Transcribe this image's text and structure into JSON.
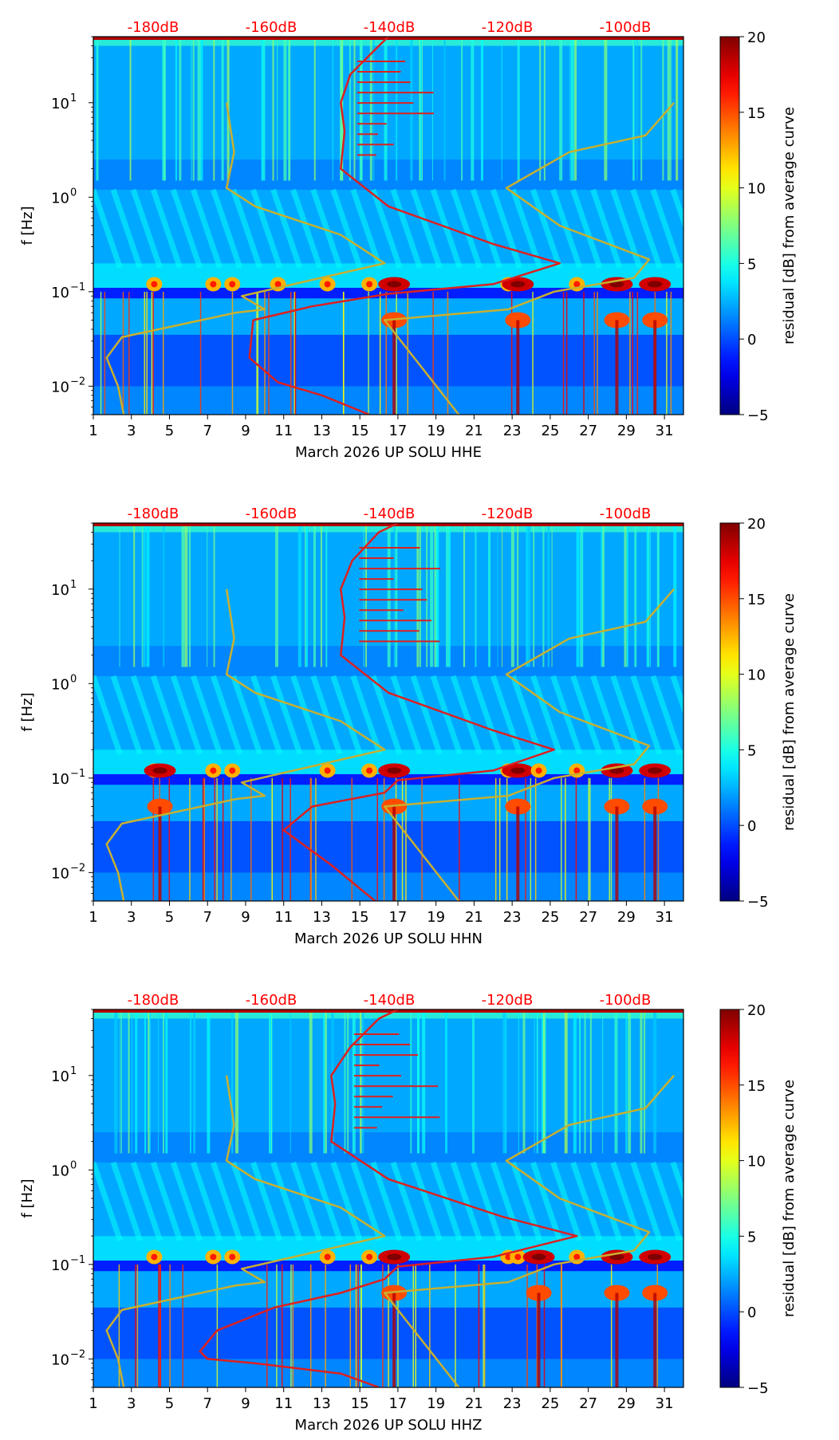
{
  "chart_data": [
    {
      "type": "heatmap",
      "title": "",
      "xlabel": "March 2026 UP SOLU  HHE",
      "ylabel": "f [Hz]",
      "x_ticks": [
        1,
        3,
        5,
        7,
        9,
        11,
        13,
        15,
        17,
        19,
        21,
        23,
        25,
        27,
        29,
        31
      ],
      "xlim": [
        1,
        32
      ],
      "y_scale": "log",
      "ylim": [
        0.005,
        50
      ],
      "y_ticks": [
        {
          "value": 0.01,
          "base": "10",
          "exp": "−2"
        },
        {
          "value": 0.1,
          "base": "10",
          "exp": "−1"
        },
        {
          "value": 1,
          "base": "10",
          "exp": "0"
        },
        {
          "value": 10,
          "base": "10",
          "exp": "1"
        }
      ],
      "top_axis_labels": [
        "-180dB",
        "-160dB",
        "-140dB",
        "-120dB",
        "-100dB"
      ],
      "colorbar": {
        "label": "residual [dB] from average curve",
        "min": -5,
        "max": 20,
        "ticks": [
          "−5",
          "0",
          "5",
          "10",
          "15",
          "20"
        ]
      },
      "colors": {
        "yellow_curve": "#c8b030",
        "red_curve": "#dd2020",
        "top_labels": "#ff0000"
      },
      "hot_days": [
        4.2,
        7.3,
        8.3,
        10.7,
        13.3,
        15.5,
        16.8,
        22.8,
        23.3,
        26.4,
        28.5,
        30.5
      ],
      "strong_days": [
        16.8,
        23.3,
        28.5,
        30.5
      ],
      "series": [
        {
          "name": "NLNM (yellow)",
          "color": "#c8b030",
          "points": [
            [
              2.6,
              0.005
            ],
            [
              2.3,
              0.01
            ],
            [
              1.7,
              0.02
            ],
            [
              2.5,
              0.033
            ],
            [
              8.5,
              0.06
            ],
            [
              10,
              0.065
            ],
            [
              8.8,
              0.09
            ],
            [
              16.3,
              0.2
            ],
            [
              14,
              0.4
            ],
            [
              9.5,
              0.8
            ],
            [
              8.0,
              1.25
            ],
            [
              8.4,
              3
            ],
            [
              8.0,
              10
            ]
          ]
        },
        {
          "name": "NHNM (yellow)",
          "color": "#c8b030",
          "points": [
            [
              20.2,
              0.005
            ],
            [
              16.3,
              0.05
            ],
            [
              22.8,
              0.065
            ],
            [
              25.2,
              0.1
            ],
            [
              29.4,
              0.14
            ],
            [
              30.2,
              0.22
            ],
            [
              25.5,
              0.5
            ],
            [
              22.7,
              1.25
            ],
            [
              26.0,
              3
            ],
            [
              30.0,
              4.5
            ],
            [
              31.5,
              10
            ]
          ]
        },
        {
          "name": "Average PSD (red)",
          "color": "#dd2020",
          "points": [
            [
              15.5,
              0.005
            ],
            [
              13.0,
              0.008
            ],
            [
              10.7,
              0.011
            ],
            [
              9.2,
              0.02
            ],
            [
              9.4,
              0.05
            ],
            [
              12.5,
              0.07
            ],
            [
              16.5,
              0.095
            ],
            [
              22,
              0.12
            ],
            [
              25.5,
              0.2
            ],
            [
              22.0,
              0.32
            ],
            [
              16.5,
              0.8
            ],
            [
              14.0,
              2
            ],
            [
              14.2,
              5
            ],
            [
              14.0,
              10
            ],
            [
              14.5,
              20
            ],
            [
              16,
              40
            ],
            [
              16.5,
              50
            ]
          ]
        }
      ]
    },
    {
      "type": "heatmap",
      "title": "",
      "xlabel": "March 2026 UP SOLU  HHN",
      "ylabel": "f [Hz]",
      "x_ticks": [
        1,
        3,
        5,
        7,
        9,
        11,
        13,
        15,
        17,
        19,
        21,
        23,
        25,
        27,
        29,
        31
      ],
      "xlim": [
        1,
        32
      ],
      "y_scale": "log",
      "ylim": [
        0.005,
        50
      ],
      "y_ticks": [
        {
          "value": 0.01,
          "base": "10",
          "exp": "−2"
        },
        {
          "value": 0.1,
          "base": "10",
          "exp": "−1"
        },
        {
          "value": 1,
          "base": "10",
          "exp": "0"
        },
        {
          "value": 10,
          "base": "10",
          "exp": "1"
        }
      ],
      "top_axis_labels": [
        "-180dB",
        "-160dB",
        "-140dB",
        "-120dB",
        "-100dB"
      ],
      "colorbar": {
        "label": "residual [dB] from average curve",
        "min": -5,
        "max": 20,
        "ticks": [
          "−5",
          "0",
          "5",
          "10",
          "15",
          "20"
        ]
      },
      "colors": {
        "yellow_curve": "#c8b030",
        "red_curve": "#dd2020",
        "top_labels": "#ff0000"
      },
      "hot_days": [
        4.2,
        4.5,
        7.3,
        8.3,
        13.3,
        15.5,
        16.8,
        22.8,
        23.3,
        24.4,
        26.4,
        28.5,
        30.5
      ],
      "strong_days": [
        4.5,
        16.8,
        23.3,
        28.5,
        30.5
      ],
      "series": [
        {
          "name": "NLNM (yellow)",
          "color": "#c8b030",
          "points": [
            [
              2.6,
              0.005
            ],
            [
              2.3,
              0.01
            ],
            [
              1.7,
              0.02
            ],
            [
              2.5,
              0.033
            ],
            [
              8.5,
              0.06
            ],
            [
              10,
              0.065
            ],
            [
              8.8,
              0.09
            ],
            [
              16.3,
              0.2
            ],
            [
              14,
              0.4
            ],
            [
              9.5,
              0.8
            ],
            [
              8.0,
              1.25
            ],
            [
              8.4,
              3
            ],
            [
              8.0,
              10
            ]
          ]
        },
        {
          "name": "NHNM (yellow)",
          "color": "#c8b030",
          "points": [
            [
              20.2,
              0.005
            ],
            [
              16.3,
              0.05
            ],
            [
              22.8,
              0.065
            ],
            [
              25.2,
              0.1
            ],
            [
              29.4,
              0.14
            ],
            [
              30.2,
              0.22
            ],
            [
              25.5,
              0.5
            ],
            [
              22.7,
              1.25
            ],
            [
              26.0,
              3
            ],
            [
              30.0,
              4.5
            ],
            [
              31.5,
              10
            ]
          ]
        },
        {
          "name": "Average PSD (red)",
          "color": "#dd2020",
          "points": [
            [
              15.8,
              0.005
            ],
            [
              13.5,
              0.012
            ],
            [
              11.0,
              0.028
            ],
            [
              12.5,
              0.05
            ],
            [
              16.3,
              0.07
            ],
            [
              17,
              0.095
            ],
            [
              22,
              0.12
            ],
            [
              25.2,
              0.2
            ],
            [
              22.0,
              0.32
            ],
            [
              16.5,
              0.8
            ],
            [
              14.0,
              2
            ],
            [
              14.2,
              5
            ],
            [
              14.0,
              10
            ],
            [
              14.6,
              20
            ],
            [
              16,
              40
            ],
            [
              17,
              50
            ]
          ]
        }
      ]
    },
    {
      "type": "heatmap",
      "title": "",
      "xlabel": "March 2026 UP SOLU  HHZ",
      "ylabel": "f [Hz]",
      "x_ticks": [
        1,
        3,
        5,
        7,
        9,
        11,
        13,
        15,
        17,
        19,
        21,
        23,
        25,
        27,
        29,
        31
      ],
      "xlim": [
        1,
        32
      ],
      "y_scale": "log",
      "ylim": [
        0.005,
        50
      ],
      "y_ticks": [
        {
          "value": 0.01,
          "base": "10",
          "exp": "−2"
        },
        {
          "value": 0.1,
          "base": "10",
          "exp": "−1"
        },
        {
          "value": 1,
          "base": "10",
          "exp": "0"
        },
        {
          "value": 10,
          "base": "10",
          "exp": "1"
        }
      ],
      "top_axis_labels": [
        "-180dB",
        "-160dB",
        "-140dB",
        "-120dB",
        "-100dB"
      ],
      "colorbar": {
        "label": "residual [dB] from average curve",
        "min": -5,
        "max": 20,
        "ticks": [
          "−5",
          "0",
          "5",
          "10",
          "15",
          "20"
        ]
      },
      "colors": {
        "yellow_curve": "#c8b030",
        "red_curve": "#dd2020",
        "top_labels": "#ff0000"
      },
      "hot_days": [
        4.2,
        7.3,
        8.3,
        13.3,
        15.5,
        16.8,
        22.8,
        23.3,
        24.4,
        26.4,
        28.5,
        30.5
      ],
      "strong_days": [
        16.8,
        24.4,
        28.5,
        30.5
      ],
      "series": [
        {
          "name": "NLNM (yellow)",
          "color": "#c8b030",
          "points": [
            [
              2.6,
              0.005
            ],
            [
              2.3,
              0.01
            ],
            [
              1.7,
              0.02
            ],
            [
              2.5,
              0.033
            ],
            [
              8.5,
              0.06
            ],
            [
              10,
              0.065
            ],
            [
              8.8,
              0.09
            ],
            [
              16.3,
              0.2
            ],
            [
              14,
              0.4
            ],
            [
              9.5,
              0.8
            ],
            [
              8.0,
              1.25
            ],
            [
              8.4,
              3
            ],
            [
              8.0,
              10
            ]
          ]
        },
        {
          "name": "NHNM (yellow)",
          "color": "#c8b030",
          "points": [
            [
              20.2,
              0.005
            ],
            [
              16.3,
              0.05
            ],
            [
              22.8,
              0.065
            ],
            [
              25.2,
              0.1
            ],
            [
              29.4,
              0.14
            ],
            [
              30.2,
              0.22
            ],
            [
              25.5,
              0.5
            ],
            [
              22.7,
              1.25
            ],
            [
              26.0,
              3
            ],
            [
              30.0,
              4.5
            ],
            [
              31.5,
              10
            ]
          ]
        },
        {
          "name": "Average PSD (red)",
          "color": "#dd2020",
          "points": [
            [
              16.0,
              0.005
            ],
            [
              14.0,
              0.007
            ],
            [
              9.5,
              0.009
            ],
            [
              7.0,
              0.01
            ],
            [
              6.6,
              0.012
            ],
            [
              7.5,
              0.02
            ],
            [
              10.5,
              0.035
            ],
            [
              14.0,
              0.05
            ],
            [
              16.3,
              0.07
            ],
            [
              17,
              0.095
            ],
            [
              22,
              0.12
            ],
            [
              26.4,
              0.2
            ],
            [
              22.5,
              0.32
            ],
            [
              16.5,
              0.8
            ],
            [
              13.5,
              2
            ],
            [
              13.7,
              5
            ],
            [
              13.5,
              10
            ],
            [
              14.5,
              20
            ],
            [
              16,
              40
            ],
            [
              17,
              50
            ]
          ]
        }
      ]
    }
  ]
}
